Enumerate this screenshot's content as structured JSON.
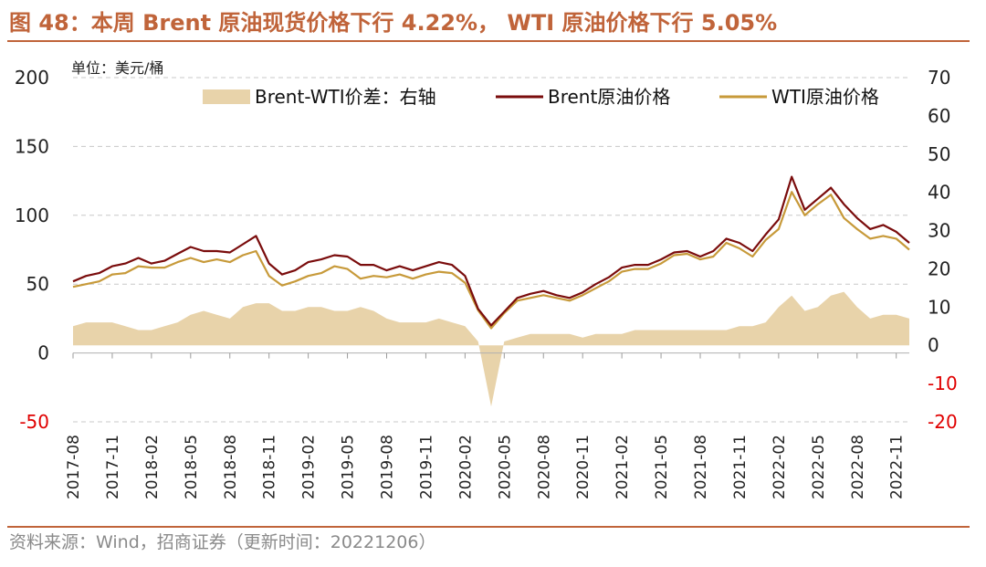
{
  "title": "图 48：本周 Brent 原油现货价格下行 4.22%， WTI 原油价格下行 5.05%",
  "source": "资料来源：Wind，招商证券（更新时间：20221206）",
  "colors": {
    "accent": "#c0643a",
    "brent": "#7a0c0c",
    "wti": "#c79a3a",
    "spread": "#e8d3aa",
    "negative_tick": "#e00000"
  },
  "chart_data": {
    "type": "line",
    "unit_label": "单位：美元/桶",
    "legend_placement": "top",
    "grid": "horizontal-dashed",
    "left_axis": {
      "ylim": [
        -50,
        200
      ],
      "ticks": [
        -50,
        0,
        50,
        100,
        150,
        200
      ]
    },
    "right_axis": {
      "ylim": [
        -20,
        70
      ],
      "ticks": [
        -20,
        -10,
        0,
        10,
        20,
        30,
        40,
        50,
        60,
        70
      ]
    },
    "x_ticks": [
      "2017-08",
      "2017-11",
      "2018-02",
      "2018-05",
      "2018-08",
      "2018-11",
      "2019-02",
      "2019-05",
      "2019-08",
      "2019-11",
      "2020-02",
      "2020-05",
      "2020-08",
      "2020-11",
      "2021-02",
      "2021-05",
      "2021-08",
      "2021-11",
      "2022-02",
      "2022-05",
      "2022-08",
      "2022-11"
    ],
    "x_range": [
      "2017-08",
      "2022-12"
    ],
    "series": [
      {
        "name": "Brent-WTI价差：右轴",
        "kind": "area",
        "axis": "right",
        "x": [
          "2017-08",
          "2017-09",
          "2017-10",
          "2017-11",
          "2017-12",
          "2018-01",
          "2018-02",
          "2018-03",
          "2018-04",
          "2018-05",
          "2018-06",
          "2018-07",
          "2018-08",
          "2018-09",
          "2018-10",
          "2018-11",
          "2018-12",
          "2019-01",
          "2019-02",
          "2019-03",
          "2019-04",
          "2019-05",
          "2019-06",
          "2019-07",
          "2019-08",
          "2019-09",
          "2019-10",
          "2019-11",
          "2019-12",
          "2020-01",
          "2020-02",
          "2020-03",
          "2020-04",
          "2020-05",
          "2020-06",
          "2020-07",
          "2020-08",
          "2020-09",
          "2020-10",
          "2020-11",
          "2020-12",
          "2021-01",
          "2021-02",
          "2021-03",
          "2021-04",
          "2021-05",
          "2021-06",
          "2021-07",
          "2021-08",
          "2021-09",
          "2021-10",
          "2021-11",
          "2021-12",
          "2022-01",
          "2022-02",
          "2022-03",
          "2022-04",
          "2022-05",
          "2022-06",
          "2022-07",
          "2022-08",
          "2022-09",
          "2022-10",
          "2022-11",
          "2022-12"
        ],
        "values": [
          5,
          6,
          6,
          6,
          5,
          4,
          4,
          5,
          6,
          8,
          9,
          8,
          7,
          10,
          11,
          11,
          9,
          9,
          10,
          10,
          9,
          9,
          10,
          9,
          7,
          6,
          6,
          6,
          7,
          6,
          5,
          1,
          -16,
          1,
          2,
          3,
          3,
          3,
          3,
          2,
          3,
          3,
          3,
          4,
          4,
          4,
          4,
          4,
          4,
          4,
          4,
          5,
          5,
          6,
          10,
          13,
          9,
          10,
          13,
          14,
          10,
          7,
          8,
          8,
          7
        ]
      },
      {
        "name": "Brent原油价格",
        "kind": "line",
        "axis": "left",
        "x": [
          "2017-08",
          "2017-09",
          "2017-10",
          "2017-11",
          "2017-12",
          "2018-01",
          "2018-02",
          "2018-03",
          "2018-04",
          "2018-05",
          "2018-06",
          "2018-07",
          "2018-08",
          "2018-09",
          "2018-10",
          "2018-11",
          "2018-12",
          "2019-01",
          "2019-02",
          "2019-03",
          "2019-04",
          "2019-05",
          "2019-06",
          "2019-07",
          "2019-08",
          "2019-09",
          "2019-10",
          "2019-11",
          "2019-12",
          "2020-01",
          "2020-02",
          "2020-03",
          "2020-04",
          "2020-05",
          "2020-06",
          "2020-07",
          "2020-08",
          "2020-09",
          "2020-10",
          "2020-11",
          "2020-12",
          "2021-01",
          "2021-02",
          "2021-03",
          "2021-04",
          "2021-05",
          "2021-06",
          "2021-07",
          "2021-08",
          "2021-09",
          "2021-10",
          "2021-11",
          "2021-12",
          "2022-01",
          "2022-02",
          "2022-03",
          "2022-04",
          "2022-05",
          "2022-06",
          "2022-07",
          "2022-08",
          "2022-09",
          "2022-10",
          "2022-11",
          "2022-12"
        ],
        "values": [
          52,
          56,
          58,
          63,
          65,
          69,
          65,
          67,
          72,
          77,
          74,
          74,
          73,
          79,
          85,
          65,
          57,
          60,
          66,
          68,
          71,
          70,
          64,
          64,
          60,
          63,
          60,
          63,
          66,
          64,
          56,
          32,
          20,
          30,
          40,
          43,
          45,
          42,
          40,
          44,
          50,
          55,
          62,
          64,
          64,
          68,
          73,
          74,
          70,
          74,
          83,
          80,
          74,
          86,
          97,
          128,
          104,
          112,
          120,
          108,
          98,
          90,
          93,
          88,
          80
        ]
      },
      {
        "name": "WTI原油价格",
        "kind": "line",
        "axis": "left",
        "x": [
          "2017-08",
          "2017-09",
          "2017-10",
          "2017-11",
          "2017-12",
          "2018-01",
          "2018-02",
          "2018-03",
          "2018-04",
          "2018-05",
          "2018-06",
          "2018-07",
          "2018-08",
          "2018-09",
          "2018-10",
          "2018-11",
          "2018-12",
          "2019-01",
          "2019-02",
          "2019-03",
          "2019-04",
          "2019-05",
          "2019-06",
          "2019-07",
          "2019-08",
          "2019-09",
          "2019-10",
          "2019-11",
          "2019-12",
          "2020-01",
          "2020-02",
          "2020-03",
          "2020-04",
          "2020-05",
          "2020-06",
          "2020-07",
          "2020-08",
          "2020-09",
          "2020-10",
          "2020-11",
          "2020-12",
          "2021-01",
          "2021-02",
          "2021-03",
          "2021-04",
          "2021-05",
          "2021-06",
          "2021-07",
          "2021-08",
          "2021-09",
          "2021-10",
          "2021-11",
          "2021-12",
          "2022-01",
          "2022-02",
          "2022-03",
          "2022-04",
          "2022-05",
          "2022-06",
          "2022-07",
          "2022-08",
          "2022-09",
          "2022-10",
          "2022-11",
          "2022-12"
        ],
        "values": [
          48,
          50,
          52,
          57,
          58,
          63,
          62,
          62,
          66,
          69,
          66,
          68,
          66,
          71,
          74,
          56,
          49,
          52,
          56,
          58,
          63,
          61,
          54,
          56,
          55,
          57,
          54,
          57,
          59,
          58,
          51,
          31,
          18,
          29,
          38,
          40,
          42,
          40,
          38,
          42,
          47,
          52,
          59,
          61,
          61,
          65,
          71,
          72,
          68,
          70,
          80,
          76,
          70,
          82,
          90,
          117,
          100,
          108,
          115,
          98,
          90,
          83,
          85,
          83,
          75
        ]
      }
    ]
  }
}
